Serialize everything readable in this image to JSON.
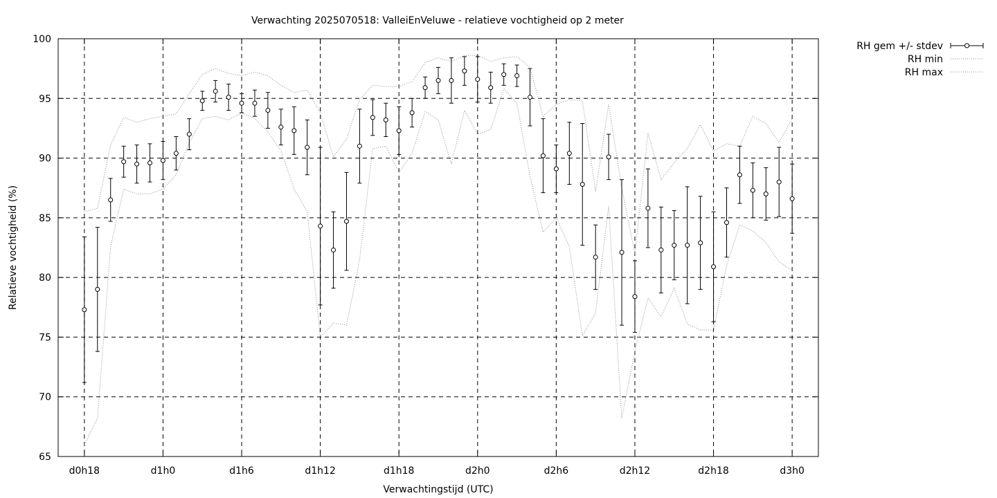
{
  "chart_data": {
    "type": "scatter",
    "title": "Verwachting 2025070518: ValleiEnVeluwe - relatieve vochtigheid op 2 meter",
    "xlabel": "Verwachtingstijd (UTC)",
    "ylabel": "Relatieve vochtigheid (%)",
    "ylim": [
      65,
      100
    ],
    "yticks": [
      65,
      70,
      75,
      80,
      85,
      90,
      95,
      100
    ],
    "xlim_hours": [
      16,
      74
    ],
    "xticks": [
      {
        "h": 18,
        "label": "d0h18"
      },
      {
        "h": 24,
        "label": "d1h0"
      },
      {
        "h": 30,
        "label": "d1h6"
      },
      {
        "h": 36,
        "label": "d1h12"
      },
      {
        "h": 42,
        "label": "d1h18"
      },
      {
        "h": 48,
        "label": "d2h0"
      },
      {
        "h": 54,
        "label": "d2h6"
      },
      {
        "h": 60,
        "label": "d2h12"
      },
      {
        "h": 66,
        "label": "d2h18"
      },
      {
        "h": 72,
        "label": "d3h0"
      }
    ],
    "grid": true,
    "legend_position": "outside-right-top",
    "series": [
      {
        "name": "RH gem +/- stdev",
        "style": "errorbars-points",
        "x": [
          18,
          19,
          20,
          21,
          22,
          23,
          24,
          25,
          26,
          27,
          28,
          29,
          30,
          31,
          32,
          33,
          34,
          35,
          36,
          37,
          38,
          39,
          40,
          41,
          42,
          43,
          44,
          45,
          46,
          47,
          48,
          49,
          50,
          51,
          52,
          53,
          54,
          55,
          56,
          57,
          58,
          59,
          60,
          61,
          62,
          63,
          64,
          65,
          66,
          67,
          68,
          69,
          70,
          71,
          72
        ],
        "y": [
          77.3,
          79.0,
          86.5,
          89.7,
          89.5,
          89.6,
          89.8,
          90.4,
          92.0,
          94.8,
          95.6,
          95.1,
          94.6,
          94.6,
          94.0,
          92.6,
          92.3,
          90.9,
          84.3,
          82.3,
          84.7,
          91.0,
          93.4,
          93.2,
          92.3,
          93.8,
          95.9,
          96.5,
          96.5,
          97.3,
          96.6,
          95.9,
          97.0,
          96.9,
          95.1,
          90.2,
          89.1,
          90.4,
          87.8,
          81.7,
          90.1,
          82.1,
          78.4,
          85.8,
          82.3,
          82.7,
          82.7,
          82.9,
          80.9,
          84.6,
          88.6,
          87.3,
          87.0,
          88.0,
          86.6
        ],
        "stdev": [
          6.1,
          5.2,
          1.8,
          1.3,
          1.6,
          1.6,
          1.6,
          1.4,
          1.3,
          0.8,
          0.9,
          1.1,
          0.8,
          1.1,
          1.5,
          1.5,
          2.0,
          2.3,
          6.6,
          3.2,
          4.1,
          3.1,
          1.5,
          1.4,
          2.0,
          1.2,
          0.9,
          1.1,
          1.9,
          1.2,
          1.9,
          1.3,
          0.9,
          0.9,
          2.4,
          3.1,
          2.0,
          2.6,
          5.1,
          2.7,
          1.9,
          6.1,
          3.0,
          3.3,
          3.6,
          2.9,
          4.9,
          3.9,
          4.6,
          2.9,
          2.4,
          2.3,
          2.2,
          2.9,
          2.9
        ]
      },
      {
        "name": "RH min",
        "style": "dotted",
        "x": [
          18,
          19,
          20,
          21,
          22,
          23,
          24,
          25,
          26,
          27,
          28,
          29,
          30,
          31,
          32,
          33,
          34,
          35,
          36,
          37,
          38,
          39,
          40,
          41,
          42,
          43,
          44,
          45,
          46,
          47,
          48,
          49,
          50,
          51,
          52,
          53,
          54,
          55,
          56,
          57,
          58,
          59,
          60,
          61,
          62,
          63,
          64,
          65,
          66,
          67,
          68,
          69,
          70,
          71,
          72
        ],
        "y": [
          66.0,
          68.2,
          82.6,
          87.4,
          87.0,
          87.0,
          87.4,
          88.6,
          91.3,
          93.3,
          93.5,
          93.2,
          93.8,
          93.3,
          92.2,
          90.6,
          87.4,
          85.5,
          75.0,
          76.2,
          76.0,
          81.5,
          90.8,
          91.0,
          88.8,
          90.4,
          93.9,
          93.2,
          89.5,
          94.0,
          92.0,
          92.4,
          95.8,
          94.6,
          88.5,
          83.8,
          85.0,
          82.6,
          75.1,
          77.0,
          86.0,
          68.2,
          73.8,
          78.3,
          76.7,
          79.1,
          76.1,
          75.6,
          75.6,
          81.0,
          84.4,
          83.9,
          82.9,
          81.3,
          80.6
        ]
      },
      {
        "name": "RH max",
        "style": "dotted",
        "x": [
          18,
          19,
          20,
          21,
          22,
          23,
          24,
          25,
          26,
          27,
          28,
          29,
          30,
          31,
          32,
          33,
          34,
          35,
          36,
          37,
          38,
          39,
          40,
          41,
          42,
          43,
          44,
          45,
          46,
          47,
          48,
          49,
          50,
          51,
          52,
          53,
          54,
          55,
          56,
          57,
          58,
          59,
          60,
          61,
          62,
          63,
          64,
          65,
          66,
          67,
          68,
          69,
          70,
          71,
          72
        ],
        "y": [
          85.5,
          85.8,
          91.1,
          93.4,
          93.0,
          93.3,
          93.5,
          93.7,
          95.4,
          97.0,
          97.5,
          97.1,
          96.9,
          97.2,
          96.9,
          96.1,
          95.5,
          95.7,
          93.8,
          90.1,
          91.6,
          94.9,
          96.1,
          96.0,
          96.0,
          96.4,
          98.0,
          98.4,
          98.1,
          98.6,
          98.6,
          98.1,
          98.4,
          98.5,
          97.6,
          93.5,
          94.5,
          94.9,
          94.8,
          87.2,
          94.5,
          87.5,
          82.0,
          92.1,
          88.2,
          89.6,
          90.8,
          92.8,
          90.6,
          91.2,
          91.0,
          93.5,
          92.9,
          91.3,
          93.3
        ]
      }
    ]
  }
}
